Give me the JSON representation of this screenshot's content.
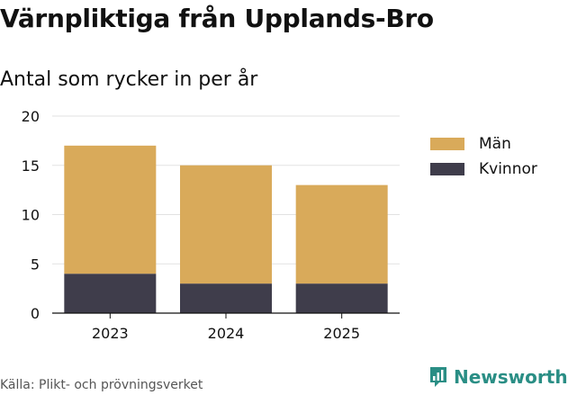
{
  "title": "Värnpliktiga från Upplands-Bro",
  "subtitle": "Antal som rycker in per år",
  "source": "Källa: Plikt- och prövningsverket",
  "brand": "Newsworthy",
  "colors": {
    "man": "#d9aa5a",
    "kvinnor": "#3f3d4b",
    "grid": "#e2e2e2",
    "brand": "#2a8e85"
  },
  "chart_data": {
    "type": "bar",
    "stacked": true,
    "categories": [
      "2023",
      "2024",
      "2025"
    ],
    "series": [
      {
        "name": "Kvinnor",
        "values": [
          4,
          3,
          3
        ],
        "color": "#3f3d4b"
      },
      {
        "name": "Män",
        "values": [
          13,
          12,
          10
        ],
        "color": "#d9aa5a"
      }
    ],
    "ylim": [
      0,
      20
    ],
    "yticks": [
      0,
      5,
      10,
      15,
      20
    ],
    "grid": true,
    "legend": [
      {
        "name": "Män",
        "color": "#d9aa5a"
      },
      {
        "name": "Kvinnor",
        "color": "#3f3d4b"
      }
    ],
    "legend_position": "right"
  }
}
